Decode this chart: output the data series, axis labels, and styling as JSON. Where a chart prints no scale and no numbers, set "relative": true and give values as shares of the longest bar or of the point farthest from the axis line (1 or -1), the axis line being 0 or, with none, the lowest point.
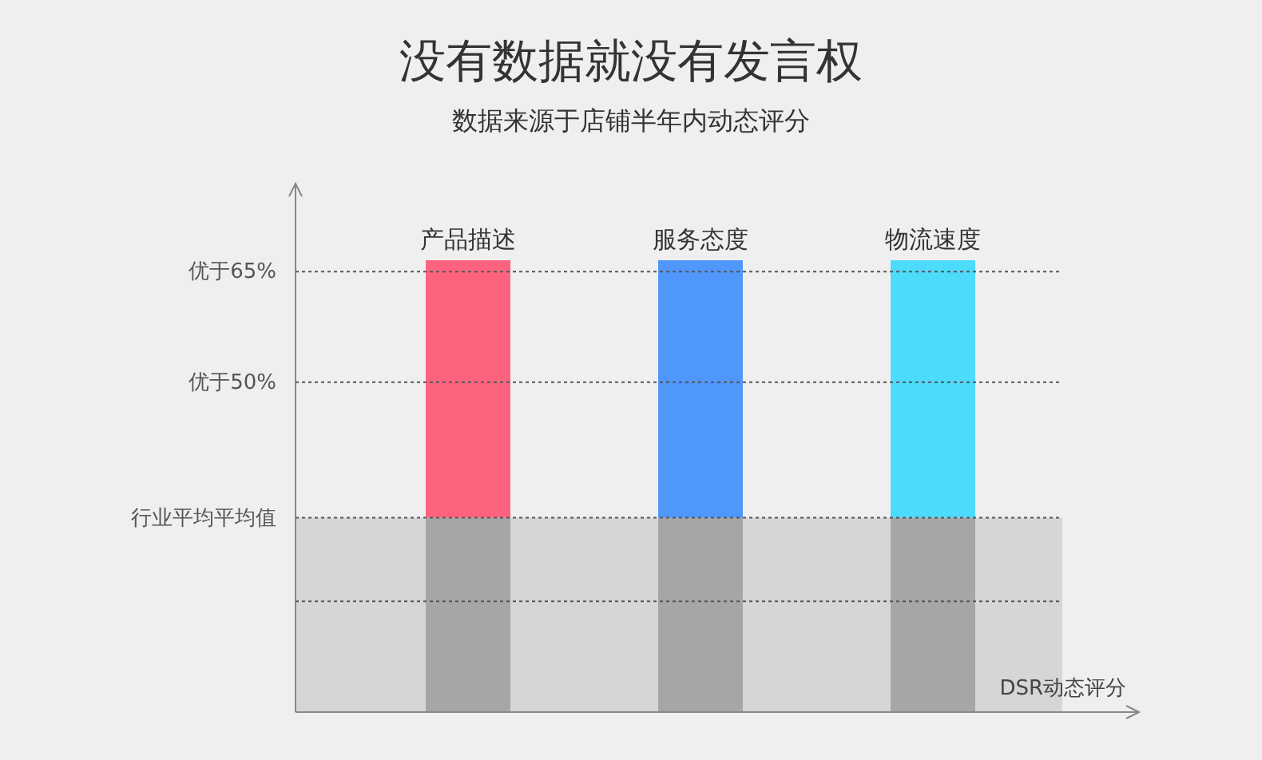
{
  "chart_data": {
    "type": "bar",
    "title": "没有数据就没有发言权",
    "subtitle": "数据来源于店铺半年内动态评分",
    "xlabel": "DSR动态评分",
    "relative": true,
    "stacked": true,
    "categories": [
      "产品描述",
      "服务态度",
      "物流速度"
    ],
    "series": [
      {
        "color": "#a6a6a6",
        "values": [
          0.43,
          0.43,
          0.43
        ]
      },
      {
        "colors": [
          "#fd637e",
          "#4f97fb",
          "#4ddbfb"
        ],
        "values": [
          0.57,
          0.57,
          0.57
        ]
      }
    ],
    "ref_lines": [
      {
        "axis": "y",
        "value": 0.975,
        "label": "优于65%",
        "line_style": "dotted",
        "color": "#555555"
      },
      {
        "axis": "y",
        "value": 0.73,
        "label": "优于50%",
        "line_style": "dotted",
        "color": "#555555"
      },
      {
        "axis": "y",
        "value": 0.43,
        "label": "行业平均平均值",
        "line_style": "dotted",
        "color": "#555555"
      },
      {
        "axis": "y",
        "value": 0.245,
        "label": null,
        "line_style": "dotted",
        "color": "#555555"
      }
    ],
    "bands": [
      {
        "axis": "y",
        "from": 0,
        "to": 0.43,
        "label": null,
        "color": "#d6d6d6"
      }
    ]
  }
}
